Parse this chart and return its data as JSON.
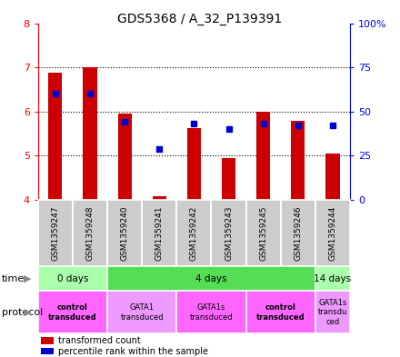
{
  "title": "GDS5368 / A_32_P139391",
  "samples": [
    "GSM1359247",
    "GSM1359248",
    "GSM1359240",
    "GSM1359241",
    "GSM1359242",
    "GSM1359243",
    "GSM1359245",
    "GSM1359246",
    "GSM1359244"
  ],
  "transformed_count": [
    6.88,
    7.0,
    5.95,
    4.08,
    5.62,
    4.95,
    6.0,
    5.8,
    5.05
  ],
  "percentile_rank": [
    60,
    60,
    44,
    29,
    43,
    40,
    43,
    42,
    42
  ],
  "ylim": [
    4,
    8
  ],
  "y2lim": [
    0,
    100
  ],
  "yticks": [
    4,
    5,
    6,
    7,
    8
  ],
  "y2ticks": [
    0,
    25,
    50,
    75,
    100
  ],
  "y2ticklabels": [
    "0",
    "25",
    "50",
    "75",
    "100%"
  ],
  "bar_color": "#cc0000",
  "dot_color": "#0000cc",
  "bar_bottom": 4.0,
  "bar_width": 0.4,
  "time_groups": [
    {
      "label": "0 days",
      "start": 0,
      "end": 2,
      "color": "#aaffaa"
    },
    {
      "label": "4 days",
      "start": 2,
      "end": 8,
      "color": "#55dd55"
    },
    {
      "label": "14 days",
      "start": 8,
      "end": 9,
      "color": "#aaffaa"
    }
  ],
  "protocol_groups": [
    {
      "label": "control\ntransduced",
      "start": 0,
      "end": 2,
      "color": "#ff66ff",
      "bold": true
    },
    {
      "label": "GATA1\ntransduced",
      "start": 2,
      "end": 4,
      "color": "#ee99ff",
      "bold": false
    },
    {
      "label": "GATA1s\ntransduced",
      "start": 4,
      "end": 6,
      "color": "#ff66ff",
      "bold": false
    },
    {
      "label": "control\ntransduced",
      "start": 6,
      "end": 8,
      "color": "#ff66ff",
      "bold": true
    },
    {
      "label": "GATA1s\ntransdu\nced",
      "start": 8,
      "end": 9,
      "color": "#ee99ff",
      "bold": false
    }
  ],
  "sample_bg_color": "#cccccc",
  "legend_red_label": "transformed count",
  "legend_blue_label": "percentile rank within the sample",
  "fig_w": 4.4,
  "fig_h": 3.93
}
